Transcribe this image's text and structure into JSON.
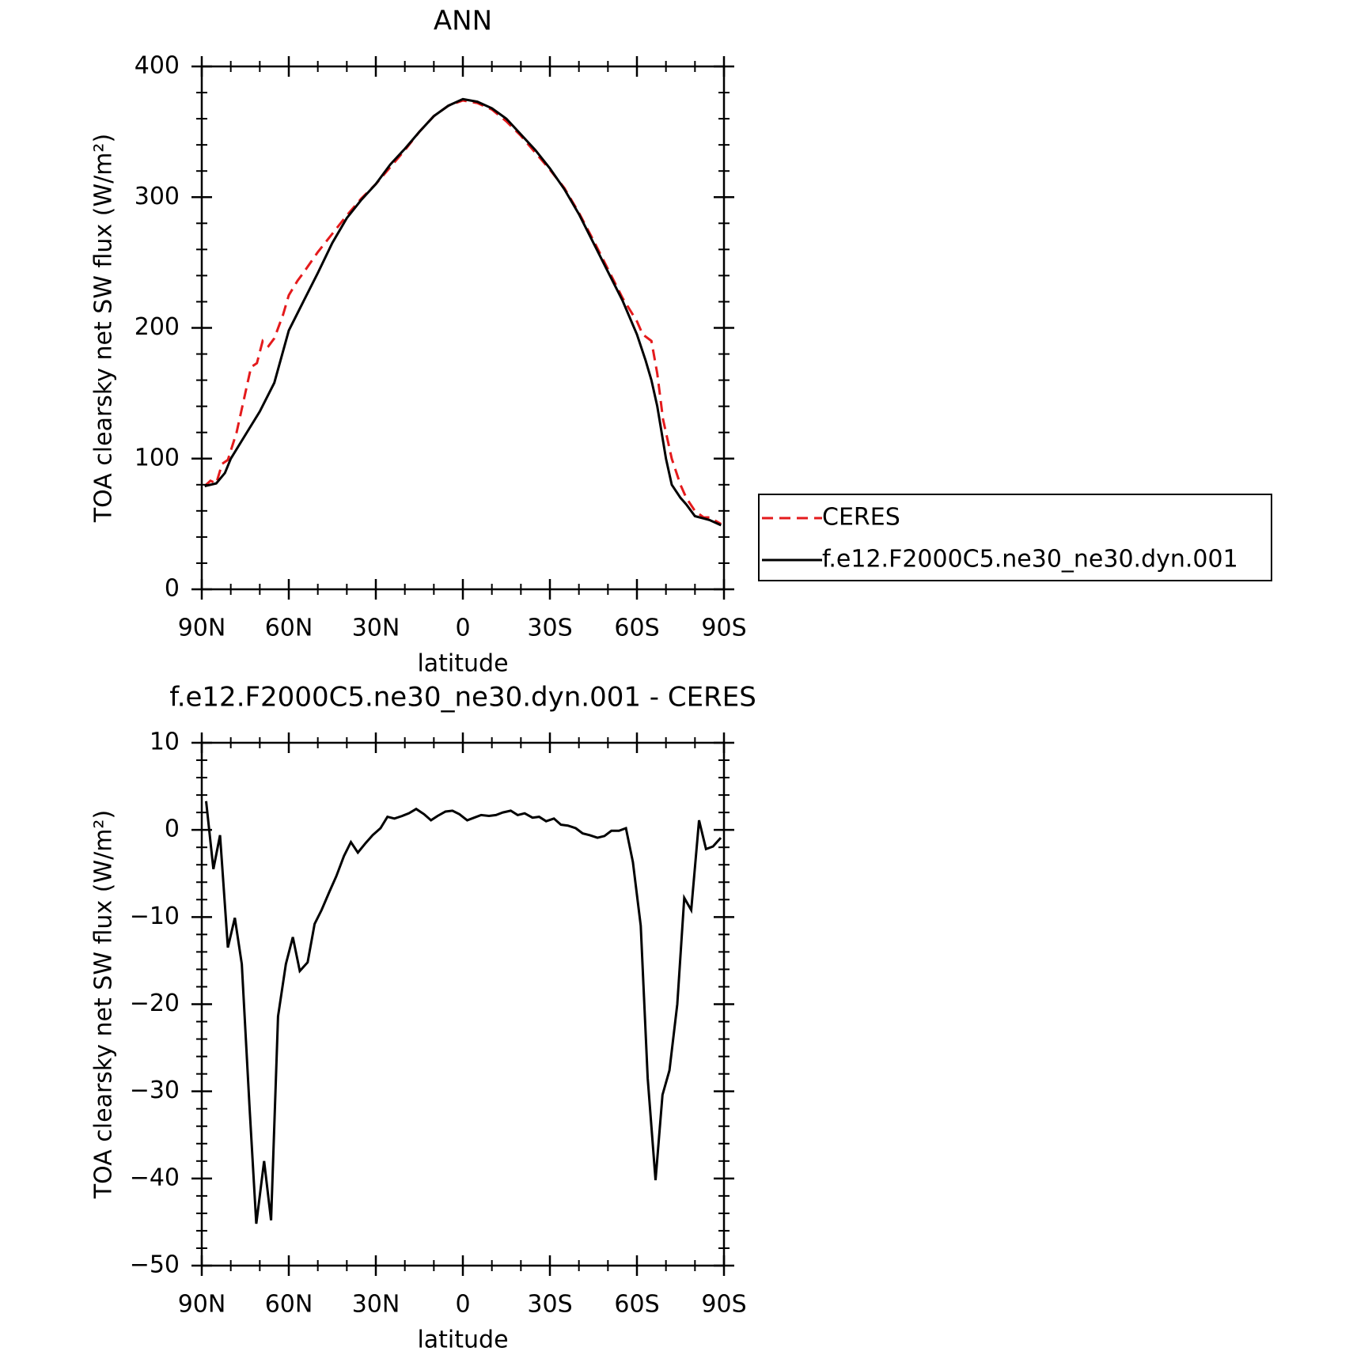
{
  "chart_data": [
    {
      "type": "line",
      "title": "ANN",
      "xlabel": "latitude",
      "ylabel": "TOA clearsky net SW flux (W/m²)",
      "xlim": [
        90,
        -90
      ],
      "ylim": [
        0,
        400
      ],
      "xticks": [
        {
          "value": 90,
          "label": "90N"
        },
        {
          "value": 60,
          "label": "60N"
        },
        {
          "value": 30,
          "label": "30N"
        },
        0,
        {
          "value": -30,
          "label": "30S"
        },
        {
          "value": -60,
          "label": "60S"
        },
        {
          "value": -90,
          "label": "90S"
        }
      ],
      "minor_xticks": [
        80,
        70,
        50,
        40,
        20,
        10,
        -10,
        -20,
        -40,
        -50,
        -70,
        -80
      ],
      "yticks": [
        0,
        100,
        200,
        300,
        400
      ],
      "minor_yticks": [
        20,
        40,
        60,
        80,
        120,
        140,
        160,
        180,
        220,
        240,
        260,
        280,
        320,
        340,
        360,
        380
      ],
      "legend": "right",
      "series": [
        {
          "name": "CERES",
          "color": "#e41a1c",
          "dash": true,
          "x": [
            89,
            87,
            85,
            83,
            81,
            78,
            75,
            73,
            71,
            69,
            67,
            65,
            62,
            60,
            57,
            55,
            50,
            45,
            40,
            35,
            30,
            25,
            20,
            15,
            10,
            5,
            0,
            -5,
            -10,
            -15,
            -20,
            -25,
            -30,
            -35,
            -40,
            -45,
            -50,
            -55,
            -60,
            -62,
            -65,
            -67,
            -69,
            -72,
            -75,
            -77,
            -80,
            -83,
            -85,
            -89
          ],
          "values": [
            79,
            83,
            81,
            96,
            99,
            120,
            150,
            170,
            173,
            190,
            186,
            192,
            210,
            225,
            236,
            242,
            258,
            272,
            286,
            299,
            310,
            323,
            336,
            350,
            362,
            370,
            374,
            372,
            367,
            358,
            347,
            334,
            321,
            307,
            288,
            267,
            245,
            223,
            205,
            195,
            190,
            165,
            130,
            100,
            80,
            70,
            60,
            55,
            55,
            50
          ]
        },
        {
          "name": "f.e12.F2000C5.ne30_ne30.dyn.001",
          "color": "#000000",
          "dash": false,
          "x": [
            89,
            85,
            82,
            80,
            75,
            70,
            65,
            60,
            55,
            50,
            45,
            40,
            35,
            30,
            25,
            20,
            15,
            10,
            5,
            0,
            -5,
            -10,
            -15,
            -20,
            -25,
            -30,
            -35,
            -40,
            -45,
            -50,
            -55,
            -60,
            -63,
            -65,
            -67,
            -70,
            -72,
            -75,
            -77,
            -80,
            -85,
            -89
          ],
          "values": [
            79,
            81,
            89,
            100,
            118,
            136,
            158,
            198,
            220,
            242,
            265,
            284,
            298,
            310,
            325,
            337,
            350,
            362,
            370,
            375,
            373,
            368,
            360,
            348,
            336,
            322,
            306,
            287,
            265,
            243,
            221,
            195,
            175,
            160,
            140,
            100,
            80,
            70,
            65,
            56,
            53,
            49
          ]
        }
      ]
    },
    {
      "type": "line",
      "title": "f.e12.F2000C5.ne30_ne30.dyn.001 - CERES",
      "xlabel": "latitude",
      "ylabel": "TOA clearsky net SW flux (W/m²)",
      "xlim": [
        90,
        -90
      ],
      "ylim": [
        -50,
        10
      ],
      "xticks": [
        {
          "value": 90,
          "label": "90N"
        },
        {
          "value": 60,
          "label": "60N"
        },
        {
          "value": 30,
          "label": "30N"
        },
        0,
        {
          "value": -30,
          "label": "30S"
        },
        {
          "value": -60,
          "label": "60S"
        },
        {
          "value": -90,
          "label": "90S"
        }
      ],
      "minor_xticks": [
        80,
        70,
        50,
        40,
        20,
        10,
        -10,
        -20,
        -40,
        -50,
        -70,
        -80
      ],
      "yticks": [
        {
          "value": -50,
          "label": "−50"
        },
        {
          "value": -40,
          "label": "−40"
        },
        {
          "value": -30,
          "label": "−30"
        },
        {
          "value": -20,
          "label": "−20"
        },
        {
          "value": -10,
          "label": "−10"
        },
        0,
        10
      ],
      "minor_yticks": [
        -48,
        -46,
        -44,
        -42,
        -38,
        -36,
        -34,
        -32,
        -28,
        -26,
        -24,
        -22,
        -18,
        -16,
        -14,
        -12,
        -8,
        -6,
        -4,
        -2,
        2,
        4,
        6,
        8
      ],
      "series": [
        {
          "color": "#000000",
          "dash": false,
          "x": [
            88.5,
            86,
            83.7,
            81,
            78.6,
            76.2,
            73.5,
            71.2,
            68.5,
            66.1,
            63.7,
            61,
            58.6,
            56.2,
            53.5,
            51.1,
            48.7,
            46,
            43.6,
            41,
            38.6,
            36.2,
            33.5,
            31.1,
            28.4,
            26,
            23.6,
            20.9,
            18.6,
            16.1,
            13.4,
            11,
            8.7,
            6,
            3.6,
            1.2,
            -1.5,
            -3.9,
            -6.3,
            -9,
            -11.4,
            -13.8,
            -16.5,
            -18.9,
            -21.3,
            -24,
            -26.3,
            -28.7,
            -31.4,
            -33.8,
            -36.2,
            -38.9,
            -41.3,
            -43.7,
            -46.4,
            -48.8,
            -51.2,
            -53.8,
            -56.2,
            -58.6,
            -61.3,
            -63.7,
            -66.4,
            -68.8,
            -71.2,
            -73.9,
            -76.3,
            -78.7,
            -81.4,
            -83.8,
            -86.2,
            -88.9
          ],
          "values": [
            3.3,
            -4.5,
            -0.6,
            -13.5,
            -10.1,
            -15.4,
            -32,
            -45.2,
            -38,
            -44.8,
            -21.4,
            -15.4,
            -12.3,
            -16.2,
            -15.2,
            -10.8,
            -9.2,
            -7.1,
            -5.3,
            -3,
            -1.4,
            -2.6,
            -1.5,
            -0.6,
            0.2,
            1.5,
            1.3,
            1.6,
            1.9,
            2.4,
            1.8,
            1.1,
            1.6,
            2.1,
            2.2,
            1.8,
            1.1,
            1.4,
            1.7,
            1.6,
            1.7,
            2,
            2.2,
            1.7,
            1.9,
            1.4,
            1.5,
            1,
            1.3,
            0.6,
            0.5,
            0.2,
            -0.4,
            -0.6,
            -0.9,
            -0.7,
            -0.1,
            -0.1,
            0.2,
            -3.7,
            -11,
            -28.5,
            -40.2,
            -30.4,
            -27.6,
            -20,
            -7.8,
            -9.2,
            1.1,
            -2.2,
            -1.9,
            -0.9
          ]
        }
      ]
    }
  ]
}
